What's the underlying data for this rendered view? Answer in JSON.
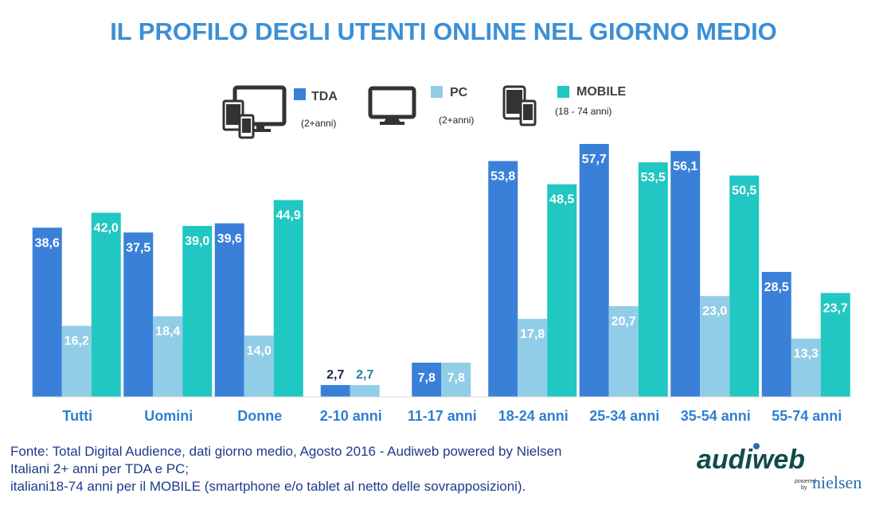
{
  "title": "IL PROFILO DEGLI UTENTI ONLINE NEL GIORNO MEDIO",
  "colors": {
    "title": "#3b8fd6",
    "tda": "#3a80d8",
    "pc": "#92cde7",
    "mobile": "#21c7c2",
    "source_text": "#1e3a8a",
    "label_dark": "#1a2b4a",
    "label_teal": "#2a7f9a"
  },
  "legend": [
    {
      "name": "TDA",
      "note": "(2+anni)",
      "icon": "tv-tablet-phone-icon"
    },
    {
      "name": "PC",
      "note": "(2+anni)",
      "icon": "desktop-monitor-icon"
    },
    {
      "name": "MOBILE",
      "note": "(18 - 74 anni)",
      "icon": "tablet-phone-icon"
    }
  ],
  "chart_data": {
    "type": "bar",
    "categories": [
      "Tutti",
      "Uomini",
      "Donne",
      "2-10 anni",
      "11-17 anni",
      "18-24 anni",
      "25-34 anni",
      "35-54 anni",
      "55-74 anni"
    ],
    "series": [
      {
        "name": "TDA",
        "values": [
          38.6,
          37.5,
          39.6,
          2.7,
          7.8,
          53.8,
          57.7,
          56.1,
          28.5
        ],
        "labels": [
          "38,6",
          "37,5",
          "39,6",
          "2,7",
          "7,8",
          "53,8",
          "57,7",
          "56,1",
          "28,5"
        ]
      },
      {
        "name": "PC",
        "values": [
          16.2,
          18.4,
          14.0,
          2.7,
          7.8,
          17.8,
          20.7,
          23.0,
          13.3
        ],
        "labels": [
          "16,2",
          "18,4",
          "14,0",
          "2,7",
          "7,8",
          "17,8",
          "20,7",
          "23,0",
          "13,3"
        ]
      },
      {
        "name": "MOBILE",
        "values": [
          42.0,
          39.0,
          44.9,
          null,
          null,
          48.5,
          53.5,
          50.5,
          23.7
        ],
        "labels": [
          "42,0",
          "39,0",
          "44,9",
          "",
          "",
          "48,5",
          "53,5",
          "50,5",
          "23,7"
        ]
      }
    ],
    "ylim": [
      0,
      60
    ],
    "grid": false,
    "legend_position": "top"
  },
  "source": {
    "line1": "Fonte: Total Digital Audience, dati giorno medio, Agosto 2016 - Audiweb powered by Nielsen",
    "line2": "Italiani 2+ anni per TDA e PC;",
    "line3": "italiani18-74 anni per il MOBILE (smartphone e/o tablet al netto delle sovrapposizioni)."
  },
  "logo": {
    "brand": "audiweb",
    "powered": "powered",
    "by": "by",
    "partner": "nielsen"
  }
}
